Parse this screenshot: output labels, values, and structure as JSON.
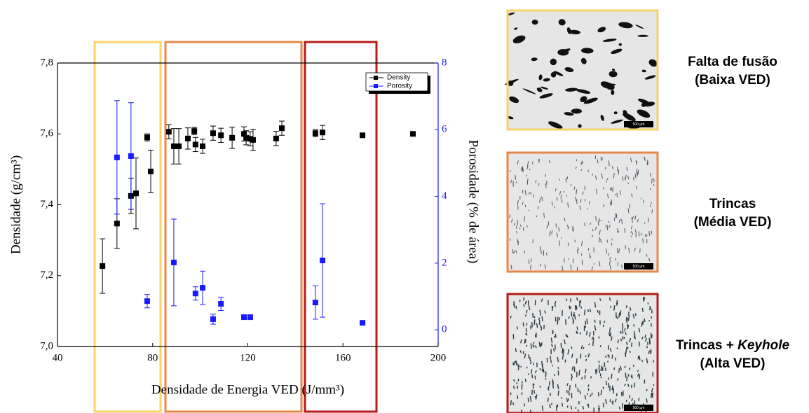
{
  "chart_data": {
    "type": "scatter",
    "xlabel": "Densidade de Energia VED (J/mm³)",
    "ylabel": "Densidade (g/cm³)",
    "y2label": "Porosidade (% de área)",
    "xlim": [
      40,
      200
    ],
    "xticks": [
      40,
      80,
      120,
      160,
      200
    ],
    "ylim": [
      7.0,
      7.8
    ],
    "yticks": [
      {
        "value": 7.0,
        "label": "7,0"
      },
      {
        "value": 7.2,
        "label": "7,2"
      },
      {
        "value": 7.4,
        "label": "7,4"
      },
      {
        "value": 7.6,
        "label": "7,6"
      },
      {
        "value": 7.8,
        "label": "7,8"
      }
    ],
    "y2lim": [
      -0.5,
      8
    ],
    "y2ticks": [
      0,
      2,
      4,
      6,
      8
    ],
    "legend": "upper right",
    "series": [
      {
        "name": "Density",
        "color": "#000000",
        "axis": "y",
        "x": [
          58.9,
          65.0,
          70.9,
          73.0,
          77.7,
          79.2,
          86.8,
          88.9,
          91.0,
          94.8,
          97.5,
          98.0,
          101.0,
          105.4,
          108.7,
          113.4,
          118.4,
          119.3,
          121.0,
          122.2,
          131.9,
          134.3,
          148.4,
          151.4,
          168.2,
          189.4
        ],
        "values": [
          7.227,
          7.347,
          7.425,
          7.432,
          7.59,
          7.494,
          7.606,
          7.565,
          7.565,
          7.587,
          7.608,
          7.57,
          7.565,
          7.602,
          7.596,
          7.589,
          7.6,
          7.589,
          7.586,
          7.583,
          7.587,
          7.616,
          7.602,
          7.604,
          7.596,
          7.6
        ],
        "errors": [
          0.077,
          0.07,
          0.05,
          0.1,
          0.01,
          0.06,
          0.02,
          0.05,
          0.05,
          0.03,
          0.01,
          0.02,
          0.02,
          0.02,
          0.02,
          0.03,
          0.02,
          0.02,
          0.02,
          0.03,
          0.02,
          0.02,
          0.01,
          0.02,
          0,
          0
        ]
      },
      {
        "name": "Porosity",
        "color": "#1a1aff",
        "axis": "y2",
        "x": [
          65.0,
          70.9,
          77.7,
          88.9,
          98.0,
          101.0,
          105.4,
          108.7,
          118.4,
          121.0,
          148.4,
          151.4,
          168.2
        ],
        "values": [
          5.17,
          5.21,
          0.86,
          2.02,
          1.09,
          1.26,
          0.32,
          0.78,
          0.38,
          0.38,
          0.82,
          2.08,
          0.21
        ],
        "errors": [
          1.7,
          1.6,
          0.2,
          1.3,
          0.2,
          0.5,
          0.15,
          0.2,
          0.05,
          0.05,
          0.5,
          1.7,
          0
        ]
      }
    ]
  },
  "micrographs": [
    {
      "title": [
        "Falta de fusão"
      ],
      "subtitle": "(Baixa VED)",
      "scale": "500 µm"
    },
    {
      "title": [
        "Trincas"
      ],
      "subtitle": "(Média VED)",
      "scale": "500 µm"
    },
    {
      "title": [
        "Trincas + ",
        "Keyhole"
      ],
      "subtitle": "(Alta VED)",
      "scale": "500 µm"
    }
  ]
}
